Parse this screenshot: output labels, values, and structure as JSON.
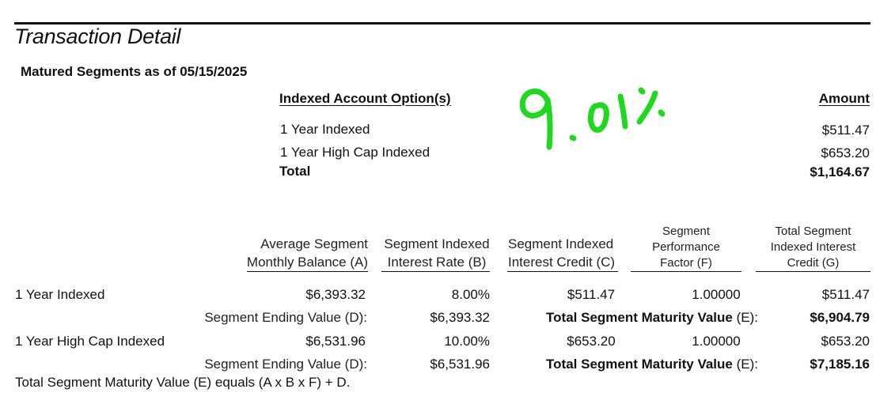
{
  "header": {
    "title": "Transaction Detail",
    "subtitle": "Matured Segments as of 05/15/2025"
  },
  "summary": {
    "col_option": "Indexed Account Option(s)",
    "col_amount": "Amount",
    "rows": [
      {
        "label": "1 Year Indexed",
        "amount": "$511.47"
      },
      {
        "label": "1 Year High Cap Indexed",
        "amount": "$653.20"
      }
    ],
    "total_label": "Total",
    "total_amount": "$1,164.67"
  },
  "annotation": {
    "text": "9.01%",
    "color": "#1fd81f"
  },
  "detail": {
    "headers": {
      "a": [
        "Average Segment",
        "Monthly Balance (A)"
      ],
      "b": [
        "Segment Indexed",
        "Interest Rate (B)"
      ],
      "c": [
        "Segment Indexed",
        "Interest Credit (C)"
      ],
      "f": [
        "Segment",
        "Performance",
        "Factor (F)"
      ],
      "g": [
        "Total Segment",
        "Indexed Interest",
        "Credit (G)"
      ]
    },
    "segments": [
      {
        "name": "1 Year Indexed",
        "a": "$6,393.32",
        "b": "8.00%",
        "c": "$511.47",
        "f": "1.00000",
        "g": "$511.47",
        "ending_label": "Segment Ending Value (D):",
        "ending_value": "$6,393.32",
        "maturity_label": "Total Segment Maturity Value",
        "maturity_suffix": "(E):",
        "maturity_value": "$6,904.79"
      },
      {
        "name": "1 Year High Cap Indexed",
        "a": "$6,531.96",
        "b": "10.00%",
        "c": "$653.20",
        "f": "1.00000",
        "g": "$653.20",
        "ending_label": "Segment Ending Value (D):",
        "ending_value": "$6,531.96",
        "maturity_label": "Total Segment Maturity Value",
        "maturity_suffix": "(E):",
        "maturity_value": "$7,185.16"
      }
    ],
    "footnote": "Total Segment Maturity Value (E) equals (A x B x F) + D."
  }
}
